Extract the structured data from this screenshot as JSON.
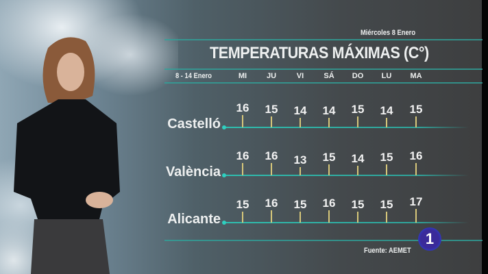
{
  "header": {
    "date": "Miércoles 8 Enero",
    "title": "TEMPERATURAS MÁXIMAS (C°)",
    "range": "8 - 14 Enero"
  },
  "days": [
    "MI",
    "JU",
    "VI",
    "SÁ",
    "DO",
    "LU",
    "MA"
  ],
  "rows": [
    {
      "city": "Castelló",
      "values": [
        16,
        15,
        14,
        14,
        15,
        14,
        15
      ]
    },
    {
      "city": "València",
      "values": [
        16,
        16,
        13,
        15,
        14,
        15,
        16
      ]
    },
    {
      "city": "Alicante",
      "values": [
        15,
        16,
        15,
        16,
        15,
        15,
        17
      ]
    }
  ],
  "footer": {
    "source": "Fuente: AEMET",
    "channel_logo": "1"
  },
  "colors": {
    "accent_line": "#2fa39a",
    "tick": "#d8c87a",
    "logo": "#3a2a9a"
  }
}
